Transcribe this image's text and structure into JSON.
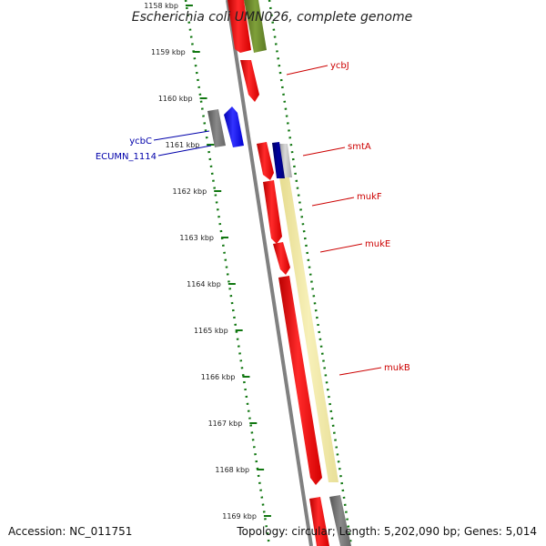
{
  "title": "Escherichia coli UMN026, complete genome",
  "footer": {
    "accession": "Accession: NC_011751",
    "topology": "Topology: circular; Length: 5,202,090 bp; Genes: 5,014"
  },
  "kbp_ticks": [
    {
      "kbp": 1158,
      "label": "1158 kbp"
    },
    {
      "kbp": 1159,
      "label": "1159 kbp"
    },
    {
      "kbp": 1160,
      "label": "1160 kbp"
    },
    {
      "kbp": 1161,
      "label": "1161 kbp"
    },
    {
      "kbp": 1162,
      "label": "1162 kbp"
    },
    {
      "kbp": 1163,
      "label": "1163 kbp"
    },
    {
      "kbp": 1164,
      "label": "1164 kbp"
    },
    {
      "kbp": 1165,
      "label": "1165 kbp"
    },
    {
      "kbp": 1166,
      "label": "1166 kbp"
    },
    {
      "kbp": 1167,
      "label": "1167 kbp"
    },
    {
      "kbp": 1168,
      "label": "1168 kbp"
    },
    {
      "kbp": 1169,
      "label": "1169 kbp"
    }
  ],
  "gene_labels": [
    {
      "name": "ycbJ",
      "color": "#cc0000"
    },
    {
      "name": "smtA",
      "color": "#cc0000"
    },
    {
      "name": "mukF",
      "color": "#cc0000"
    },
    {
      "name": "mukE",
      "color": "#cc0000"
    },
    {
      "name": "mukB",
      "color": "#cc0000"
    },
    {
      "name": "ycbC",
      "color": "#0000aa"
    },
    {
      "name": "ECUMN_1114",
      "color": "#0000aa"
    }
  ],
  "colors": {
    "backbone": "#808080",
    "tick_green": "#117711",
    "gene_red": "#ff0000",
    "gene_blue": "#0000ff",
    "gene_navy": "#000080",
    "gene_gray": "#777777",
    "gene_olive": "#6b8e23",
    "operon_yellow": "#eee8aa",
    "label_red": "#cc0000",
    "label_blue": "#0000aa"
  }
}
